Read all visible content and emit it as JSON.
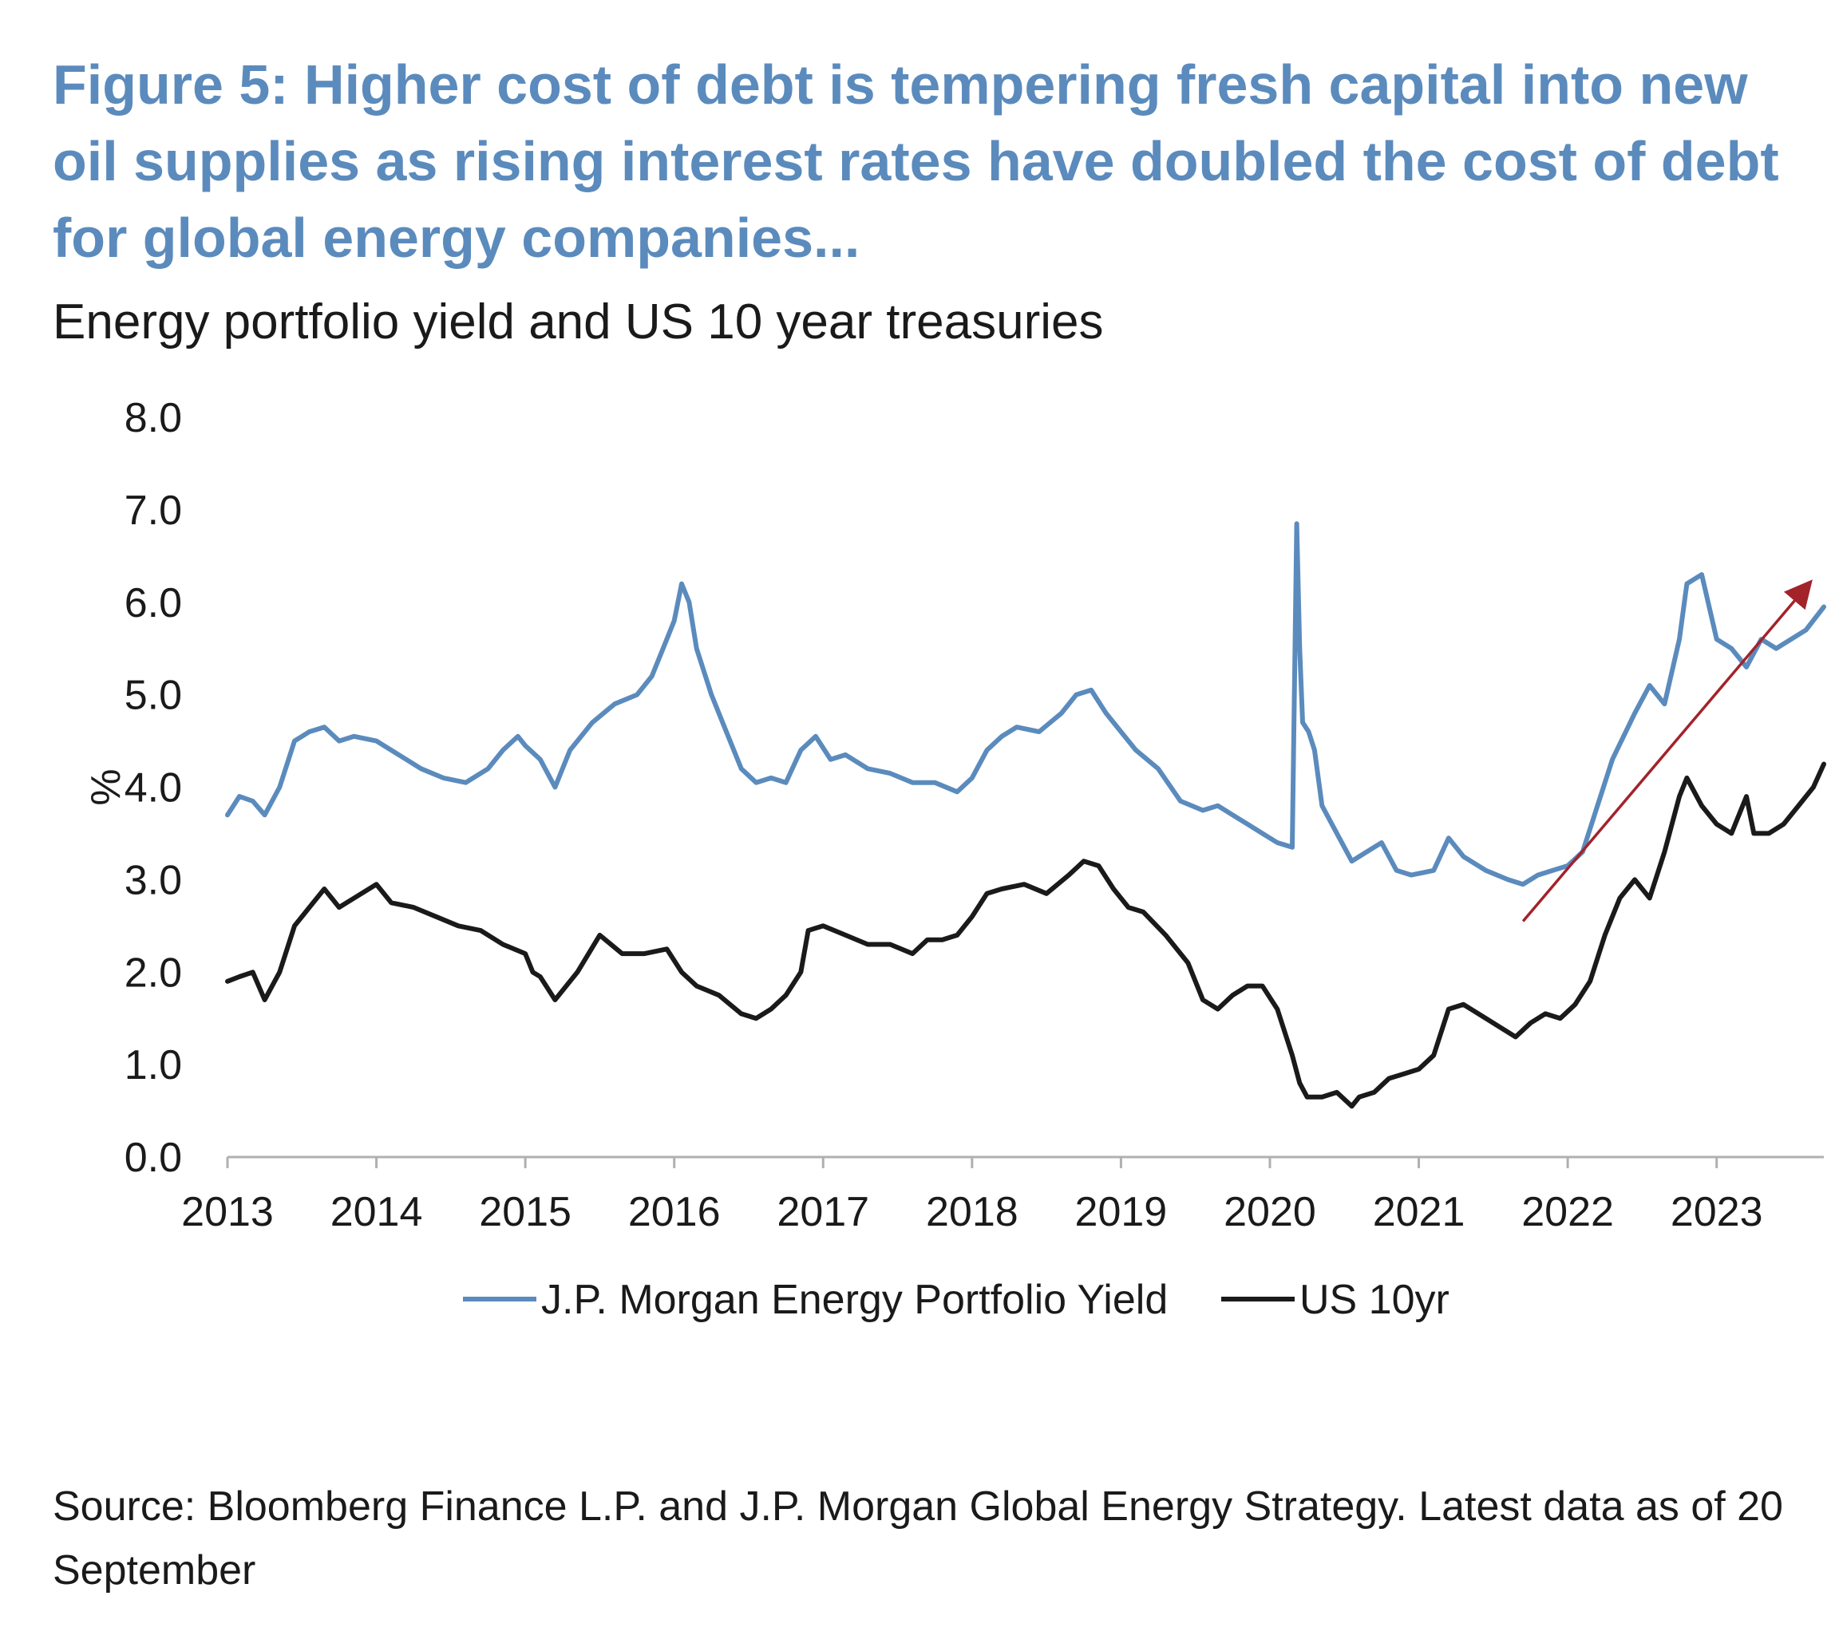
{
  "title": "Figure 5: Higher cost of debt is tempering fresh capital into new oil supplies as rising interest rates have doubled the cost of debt for global energy companies...",
  "source": "Source: Bloomberg Finance L.P. and J.P. Morgan Global Energy Strategy. Latest data as of 20 September",
  "chart_data": {
    "type": "line",
    "title": "Energy portfolio yield and US 10 year treasuries",
    "xlabel": "",
    "ylabel": "%",
    "ylim": [
      0,
      8
    ],
    "xlim": [
      2013,
      2023.72
    ],
    "y_ticks": [
      "0.0",
      "1.0",
      "2.0",
      "3.0",
      "4.0",
      "5.0",
      "6.0",
      "7.0",
      "8.0"
    ],
    "x_ticks": [
      "2013",
      "2014",
      "2015",
      "2016",
      "2017",
      "2018",
      "2019",
      "2020",
      "2021",
      "2022",
      "2023"
    ],
    "grid": false,
    "legend_position": "bottom",
    "series": [
      {
        "name": "J.P. Morgan Energy Portfolio Yield",
        "color": "#5b8bbd",
        "x": [
          2013.0,
          2013.08,
          2013.17,
          2013.25,
          2013.35,
          2013.45,
          2013.55,
          2013.65,
          2013.75,
          2013.85,
          2014.0,
          2014.15,
          2014.3,
          2014.45,
          2014.6,
          2014.75,
          2014.85,
          2014.95,
          2015.0,
          2015.1,
          2015.2,
          2015.3,
          2015.45,
          2015.6,
          2015.75,
          2015.85,
          2015.95,
          2016.0,
          2016.05,
          2016.1,
          2016.15,
          2016.25,
          2016.35,
          2016.45,
          2016.55,
          2016.65,
          2016.75,
          2016.85,
          2016.95,
          2017.05,
          2017.15,
          2017.3,
          2017.45,
          2017.6,
          2017.75,
          2017.9,
          2018.0,
          2018.1,
          2018.2,
          2018.3,
          2018.45,
          2018.6,
          2018.7,
          2018.8,
          2018.9,
          2019.0,
          2019.1,
          2019.25,
          2019.4,
          2019.55,
          2019.65,
          2019.75,
          2019.85,
          2019.95,
          2020.05,
          2020.15,
          2020.18,
          2020.2,
          2020.22,
          2020.26,
          2020.3,
          2020.35,
          2020.45,
          2020.55,
          2020.65,
          2020.75,
          2020.85,
          2020.95,
          2021.1,
          2021.2,
          2021.3,
          2021.45,
          2021.6,
          2021.7,
          2021.8,
          2021.9,
          2022.0,
          2022.1,
          2022.2,
          2022.3,
          2022.45,
          2022.55,
          2022.65,
          2022.75,
          2022.8,
          2022.9,
          2023.0,
          2023.1,
          2023.2,
          2023.3,
          2023.4,
          2023.5,
          2023.6,
          2023.72
        ],
        "values": [
          3.7,
          3.9,
          3.85,
          3.7,
          4.0,
          4.5,
          4.6,
          4.65,
          4.5,
          4.55,
          4.5,
          4.35,
          4.2,
          4.1,
          4.05,
          4.2,
          4.4,
          4.55,
          4.45,
          4.3,
          4.0,
          4.4,
          4.7,
          4.9,
          5.0,
          5.2,
          5.6,
          5.8,
          6.2,
          6.0,
          5.5,
          5.0,
          4.6,
          4.2,
          4.05,
          4.1,
          4.05,
          4.4,
          4.55,
          4.3,
          4.35,
          4.2,
          4.15,
          4.05,
          4.05,
          3.95,
          4.1,
          4.4,
          4.55,
          4.65,
          4.6,
          4.8,
          5.0,
          5.05,
          4.8,
          4.6,
          4.4,
          4.2,
          3.85,
          3.75,
          3.8,
          3.7,
          3.6,
          3.5,
          3.4,
          3.35,
          6.85,
          5.5,
          4.7,
          4.6,
          4.4,
          3.8,
          3.5,
          3.2,
          3.3,
          3.4,
          3.1,
          3.05,
          3.1,
          3.45,
          3.25,
          3.1,
          3.0,
          2.95,
          3.05,
          3.1,
          3.15,
          3.3,
          3.8,
          4.3,
          4.8,
          5.1,
          4.9,
          5.6,
          6.2,
          6.3,
          5.6,
          5.5,
          5.3,
          5.6,
          5.5,
          5.6,
          5.7,
          5.95
        ]
      },
      {
        "name": "US 10yr",
        "color": "#1a1a1a",
        "x": [
          2013.0,
          2013.08,
          2013.17,
          2013.25,
          2013.35,
          2013.45,
          2013.55,
          2013.65,
          2013.75,
          2013.85,
          2014.0,
          2014.1,
          2014.25,
          2014.4,
          2014.55,
          2014.7,
          2014.85,
          2015.0,
          2015.05,
          2015.1,
          2015.2,
          2015.35,
          2015.5,
          2015.65,
          2015.8,
          2015.95,
          2016.05,
          2016.15,
          2016.3,
          2016.45,
          2016.55,
          2016.65,
          2016.75,
          2016.85,
          2016.9,
          2017.0,
          2017.15,
          2017.3,
          2017.45,
          2017.6,
          2017.7,
          2017.8,
          2017.9,
          2018.0,
          2018.1,
          2018.2,
          2018.35,
          2018.5,
          2018.65,
          2018.75,
          2018.85,
          2018.95,
          2019.05,
          2019.15,
          2019.3,
          2019.45,
          2019.55,
          2019.65,
          2019.75,
          2019.85,
          2019.95,
          2020.05,
          2020.15,
          2020.2,
          2020.25,
          2020.35,
          2020.45,
          2020.55,
          2020.6,
          2020.7,
          2020.8,
          2020.9,
          2021.0,
          2021.1,
          2021.2,
          2021.3,
          2021.45,
          2021.55,
          2021.65,
          2021.75,
          2021.85,
          2021.95,
          2022.05,
          2022.15,
          2022.25,
          2022.35,
          2022.45,
          2022.55,
          2022.65,
          2022.75,
          2022.8,
          2022.9,
          2023.0,
          2023.1,
          2023.2,
          2023.25,
          2023.35,
          2023.45,
          2023.55,
          2023.65,
          2023.72
        ],
        "values": [
          1.9,
          1.95,
          2.0,
          1.7,
          2.0,
          2.5,
          2.7,
          2.9,
          2.7,
          2.8,
          2.95,
          2.75,
          2.7,
          2.6,
          2.5,
          2.45,
          2.3,
          2.2,
          2.0,
          1.95,
          1.7,
          2.0,
          2.4,
          2.2,
          2.2,
          2.25,
          2.0,
          1.85,
          1.75,
          1.55,
          1.5,
          1.6,
          1.75,
          2.0,
          2.45,
          2.5,
          2.4,
          2.3,
          2.3,
          2.2,
          2.35,
          2.35,
          2.4,
          2.6,
          2.85,
          2.9,
          2.95,
          2.85,
          3.05,
          3.2,
          3.15,
          2.9,
          2.7,
          2.65,
          2.4,
          2.1,
          1.7,
          1.6,
          1.75,
          1.85,
          1.85,
          1.6,
          1.1,
          0.8,
          0.65,
          0.65,
          0.7,
          0.55,
          0.65,
          0.7,
          0.85,
          0.9,
          0.95,
          1.1,
          1.6,
          1.65,
          1.5,
          1.4,
          1.3,
          1.45,
          1.55,
          1.5,
          1.65,
          1.9,
          2.4,
          2.8,
          3.0,
          2.8,
          3.3,
          3.9,
          4.1,
          3.8,
          3.6,
          3.5,
          3.9,
          3.5,
          3.5,
          3.6,
          3.8,
          4.0,
          4.25
        ]
      }
    ],
    "annotations": [
      {
        "type": "arrow",
        "color": "#a3232b",
        "from": [
          2021.7,
          2.55
        ],
        "to": [
          2023.62,
          6.2
        ]
      }
    ]
  }
}
